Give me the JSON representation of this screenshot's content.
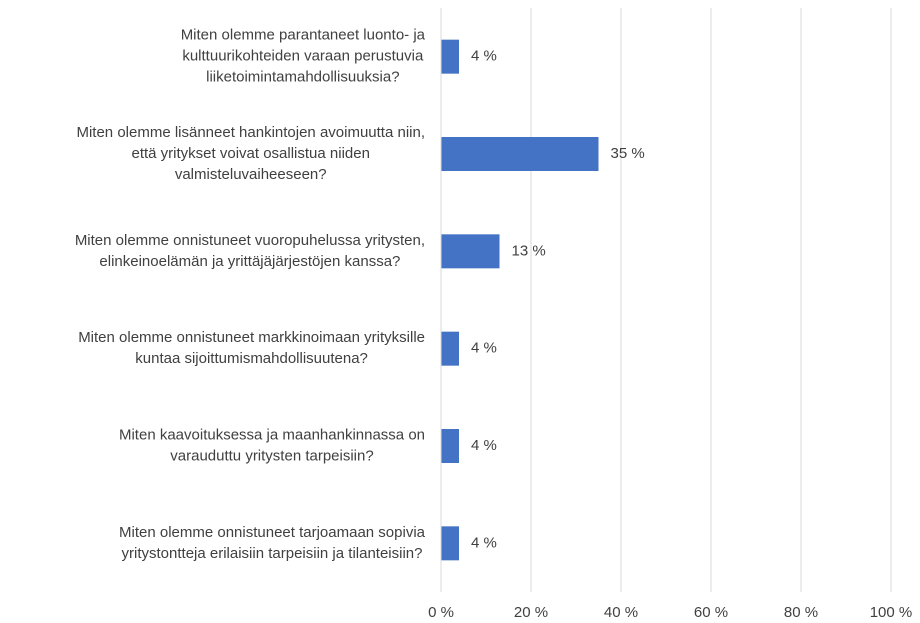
{
  "chart_data": {
    "type": "bar",
    "orientation": "horizontal",
    "categories": [
      "Miten olemme parantaneet luonto- ja\nkulttuurikohteiden varaan perustuvia\nliiketoimintamahdollisuuksia?",
      "Miten olemme lisänneet hankintojen avoimuutta niin,\nettä yritykset voivat osallistua niiden\nvalmisteluvaiheeseen?",
      "Miten olemme onnistuneet vuoropuhelussa yritysten,\nelinkeinoelämän ja yrittäjäjärjestöjen kanssa?",
      "Miten olemme onnistuneet markkinoimaan yrityksille\nkuntaa sijoittumismahdollisuutena?",
      "Miten kaavoituksessa ja maanhankinnassa on\nvarauduttu yritysten tarpeisiin?",
      "Miten olemme onnistuneet tarjoamaan sopivia\nyritystontteja erilaisiin tarpeisiin ja tilanteisiin?"
    ],
    "values": [
      4,
      35,
      13,
      4,
      4,
      4
    ],
    "value_labels": [
      "4 %",
      "35 %",
      "13 %",
      "4 %",
      "4 %",
      "4 %"
    ],
    "color": "#4472c4",
    "xlim": [
      0,
      100
    ],
    "xticks": [
      {
        "value": 0,
        "label": "0 %"
      },
      {
        "value": 20,
        "label": "20 %"
      },
      {
        "value": 40,
        "label": "40 %"
      },
      {
        "value": 60,
        "label": "60 %"
      },
      {
        "value": 80,
        "label": "80 %"
      },
      {
        "value": 100,
        "label": "100 %"
      }
    ],
    "grid": true
  }
}
